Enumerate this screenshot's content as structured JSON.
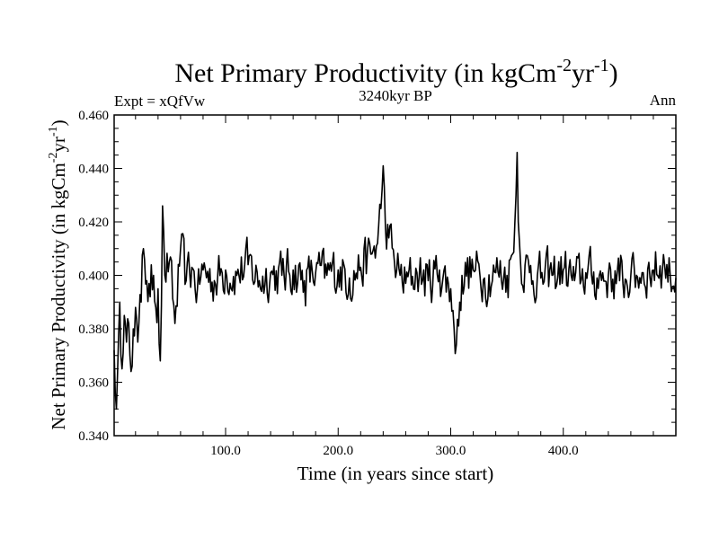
{
  "chart_data": {
    "type": "line",
    "title": {
      "base": "Net Primary Productivity (in kgCm",
      "sup1": "-2",
      "mid": "yr",
      "sup2": "-1",
      "close": ")"
    },
    "subtitle_left": "Expt = xQfVw",
    "subtitle_center": "3240kyr BP",
    "subtitle_right": "Ann",
    "xlabel": "Time (in years since start)",
    "ylabel": {
      "base": "Net Primary Productivity (in kgCm",
      "sup1": "-2",
      "mid": "yr",
      "sup2": "-1",
      "close": ")"
    },
    "xlim": [
      1,
      500
    ],
    "ylim": [
      0.34,
      0.46
    ],
    "xticks": [
      100,
      200,
      300,
      400
    ],
    "xtick_labels": [
      "100.0",
      "200.0",
      "300.0",
      "400.0"
    ],
    "yticks": [
      0.34,
      0.36,
      0.38,
      0.4,
      0.42,
      0.44,
      0.46
    ],
    "ytick_labels": [
      "0.340",
      "0.360",
      "0.380",
      "0.400",
      "0.420",
      "0.440",
      "0.460"
    ],
    "anchors": [
      [
        1,
        0.372
      ],
      [
        2,
        0.356
      ],
      [
        3,
        0.35
      ],
      [
        4,
        0.363
      ],
      [
        5,
        0.378
      ],
      [
        6,
        0.39
      ],
      [
        7,
        0.37
      ],
      [
        8,
        0.365
      ],
      [
        10,
        0.385
      ],
      [
        12,
        0.375
      ],
      [
        14,
        0.382
      ],
      [
        16,
        0.364
      ],
      [
        18,
        0.38
      ],
      [
        20,
        0.388
      ],
      [
        22,
        0.375
      ],
      [
        25,
        0.39
      ],
      [
        27,
        0.41
      ],
      [
        30,
        0.398
      ],
      [
        33,
        0.392
      ],
      [
        36,
        0.4
      ],
      [
        38,
        0.388
      ],
      [
        40,
        0.395
      ],
      [
        42,
        0.368
      ],
      [
        44,
        0.426
      ],
      [
        46,
        0.4
      ],
      [
        50,
        0.405
      ],
      [
        55,
        0.382
      ],
      [
        60,
        0.41
      ],
      [
        65,
        0.398
      ],
      [
        70,
        0.403
      ],
      [
        75,
        0.395
      ],
      [
        80,
        0.402
      ],
      [
        90,
        0.398
      ],
      [
        100,
        0.402
      ],
      [
        110,
        0.4
      ],
      [
        120,
        0.404
      ],
      [
        130,
        0.398
      ],
      [
        140,
        0.401
      ],
      [
        150,
        0.4
      ],
      [
        160,
        0.402
      ],
      [
        170,
        0.398
      ],
      [
        180,
        0.401
      ],
      [
        190,
        0.4
      ],
      [
        200,
        0.402
      ],
      [
        210,
        0.399
      ],
      [
        220,
        0.403
      ],
      [
        230,
        0.408
      ],
      [
        235,
        0.412
      ],
      [
        238,
        0.425
      ],
      [
        240,
        0.441
      ],
      [
        242,
        0.418
      ],
      [
        245,
        0.414
      ],
      [
        250,
        0.405
      ],
      [
        255,
        0.4
      ],
      [
        260,
        0.397
      ],
      [
        270,
        0.401
      ],
      [
        280,
        0.398
      ],
      [
        290,
        0.402
      ],
      [
        300,
        0.395
      ],
      [
        303,
        0.38
      ],
      [
        305,
        0.374
      ],
      [
        308,
        0.39
      ],
      [
        310,
        0.4
      ],
      [
        320,
        0.402
      ],
      [
        330,
        0.399
      ],
      [
        340,
        0.401
      ],
      [
        350,
        0.4
      ],
      [
        355,
        0.408
      ],
      [
        358,
        0.43
      ],
      [
        359,
        0.446
      ],
      [
        360,
        0.42
      ],
      [
        362,
        0.405
      ],
      [
        370,
        0.401
      ],
      [
        380,
        0.399
      ],
      [
        390,
        0.4
      ],
      [
        400,
        0.402
      ],
      [
        410,
        0.398
      ],
      [
        420,
        0.401
      ],
      [
        430,
        0.399
      ],
      [
        440,
        0.4
      ],
      [
        450,
        0.398
      ],
      [
        460,
        0.4
      ],
      [
        470,
        0.401
      ],
      [
        480,
        0.402
      ],
      [
        490,
        0.404
      ],
      [
        495,
        0.4
      ],
      [
        500,
        0.399
      ]
    ],
    "noise_amplitude": 0.0085,
    "noise_start_year": 20
  }
}
